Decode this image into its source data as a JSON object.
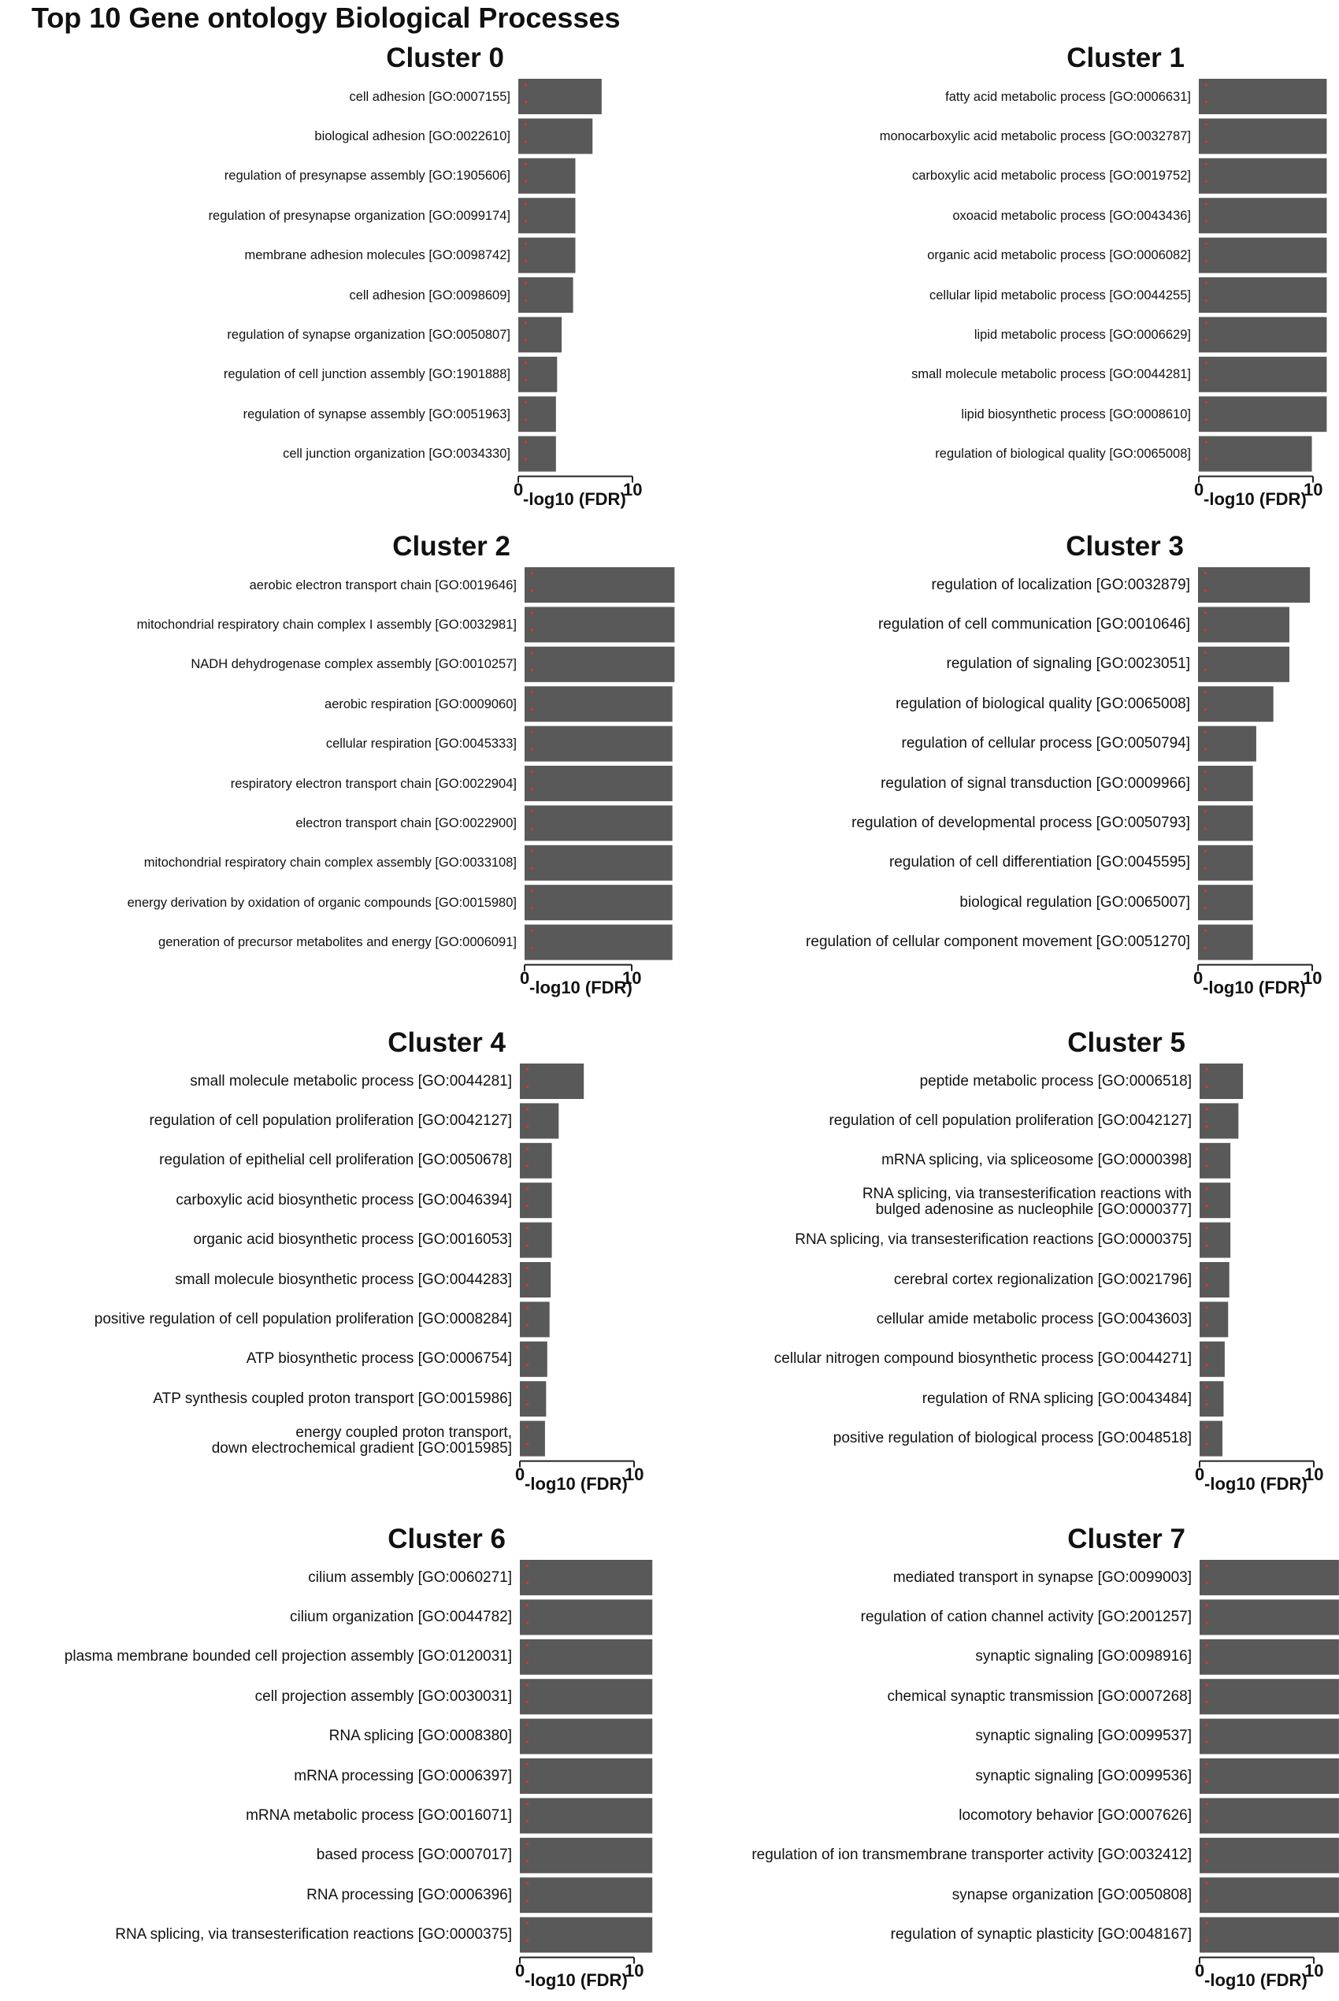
{
  "title": "Top 10 Gene ontology Biological Processes",
  "chart_data": [
    {
      "type": "bar",
      "title": "Cluster 0",
      "xlabel": "-log10 (FDR)",
      "xlim": [
        0,
        10
      ],
      "xticks": [
        "0",
        "10"
      ],
      "categories": [
        "cell adhesion [GO:0007155]",
        "biological adhesion [GO:0022610]",
        "regulation of presynapse assembly [GO:1905606]",
        "regulation of presynapse organization [GO:0099174]",
        "membrane adhesion molecules [GO:0098742]",
        "cell adhesion [GO:0098609]",
        "regulation of synapse organization [GO:0050807]",
        "regulation of cell junction assembly [GO:1901888]",
        "regulation of synapse assembly [GO:0051963]",
        "cell junction organization [GO:0034330]"
      ],
      "values": [
        7.3,
        6.5,
        5.0,
        5.0,
        5.0,
        4.8,
        3.8,
        3.4,
        3.3,
        3.3
      ]
    },
    {
      "type": "bar",
      "title": "Cluster 1",
      "xlabel": "-log10 (FDR)",
      "xlim": [
        0,
        10
      ],
      "xticks": [
        "0",
        "10"
      ],
      "categories": [
        "fatty acid metabolic process [GO:0006631]",
        "monocarboxylic acid metabolic process [GO:0032787]",
        "carboxylic acid metabolic process [GO:0019752]",
        "oxoacid metabolic process [GO:0043436]",
        "organic acid metabolic process [GO:0006082]",
        "cellular lipid metabolic process [GO:0044255]",
        "lipid metabolic process [GO:0006629]",
        "small molecule metabolic process [GO:0044281]",
        "lipid biosynthetic process [GO:0008610]",
        "regulation of biological quality [GO:0065008]"
      ],
      "values": [
        11.2,
        11.2,
        11.2,
        11.2,
        11.2,
        11.2,
        11.2,
        11.2,
        11.2,
        9.9
      ]
    },
    {
      "type": "bar",
      "title": "Cluster 2",
      "xlabel": "-log10 (FDR)",
      "xlim": [
        0,
        10
      ],
      "xticks": [
        "0",
        "10"
      ],
      "categories": [
        "aerobic electron transport chain [GO:0019646]",
        "mitochondrial respiratory chain complex I assembly [GO:0032981]",
        "NADH dehydrogenase complex assembly [GO:0010257]",
        "aerobic respiration [GO:0009060]",
        "cellular respiration [GO:0045333]",
        "respiratory electron transport chain [GO:0022904]",
        "electron transport chain [GO:0022900]",
        "mitochondrial respiratory chain complex assembly [GO:0033108]",
        "energy derivation by oxidation of organic compounds [GO:0015980]",
        "generation of precursor metabolites and energy [GO:0006091]"
      ],
      "values": [
        14.0,
        14.0,
        14.0,
        13.8,
        13.8,
        13.8,
        13.8,
        13.8,
        13.8,
        13.8
      ]
    },
    {
      "type": "bar",
      "title": "Cluster 3",
      "xlabel": "-log10 (FDR)",
      "xlim": [
        0,
        10
      ],
      "xticks": [
        "0",
        "10"
      ],
      "categories": [
        "regulation of localization [GO:0032879]",
        "regulation of cell communication [GO:0010646]",
        "regulation of signaling [GO:0023051]",
        "regulation of biological quality [GO:0065008]",
        "regulation of cellular process [GO:0050794]",
        "regulation of signal transduction [GO:0009966]",
        "regulation of developmental process [GO:0050793]",
        "regulation of cell differentiation [GO:0045595]",
        "biological regulation [GO:0065007]",
        "regulation of cellular component movement [GO:0051270]"
      ],
      "values": [
        9.8,
        8.0,
        8.0,
        6.6,
        5.1,
        4.8,
        4.8,
        4.8,
        4.8,
        4.8
      ]
    },
    {
      "type": "bar",
      "title": "Cluster 4",
      "xlabel": "-log10 (FDR)",
      "xlim": [
        0,
        10
      ],
      "xticks": [
        "0",
        "10"
      ],
      "categories": [
        "small molecule metabolic process [GO:0044281]",
        "regulation of cell population proliferation [GO:0042127]",
        "regulation of epithelial cell proliferation [GO:0050678]",
        "carboxylic acid biosynthetic process [GO:0046394]",
        "organic acid biosynthetic process [GO:0016053]",
        "small molecule biosynthetic process [GO:0044283]",
        "positive regulation of cell population proliferation [GO:0008284]",
        "ATP biosynthetic process [GO:0006754]",
        "ATP synthesis coupled proton transport [GO:0015986]",
        "energy coupled proton transport, down electrochemical gradient [GO:0015985]"
      ],
      "values": [
        5.6,
        3.4,
        2.8,
        2.8,
        2.8,
        2.7,
        2.6,
        2.4,
        2.3,
        2.2
      ]
    },
    {
      "type": "bar",
      "title": "Cluster 5",
      "xlabel": "-log10 (FDR)",
      "xlim": [
        0,
        10
      ],
      "xticks": [
        "0",
        "10"
      ],
      "categories": [
        "peptide metabolic process [GO:0006518]",
        "regulation of cell population proliferation [GO:0042127]",
        "mRNA splicing, via spliceosome [GO:0000398]",
        "RNA splicing, via transesterification reactions with bulged adenosine as nucleophile [GO:0000377]",
        "RNA splicing, via transesterification reactions [GO:0000375]",
        "cerebral cortex regionalization [GO:0021796]",
        "cellular amide metabolic process [GO:0043603]",
        "cellular nitrogen compound biosynthetic process [GO:0044271]",
        "regulation of RNA splicing [GO:0043484]",
        "positive regulation of biological process [GO:0048518]"
      ],
      "values": [
        3.8,
        3.4,
        2.7,
        2.7,
        2.7,
        2.6,
        2.5,
        2.2,
        2.1,
        2.0
      ]
    },
    {
      "type": "bar",
      "title": "Cluster 6",
      "xlabel": "-log10 (FDR)",
      "xlim": [
        0,
        10
      ],
      "xticks": [
        "0",
        "10"
      ],
      "categories": [
        "cilium assembly [GO:0060271]",
        "cilium organization [GO:0044782]",
        "plasma membrane bounded cell projection assembly [GO:0120031]",
        "cell projection assembly [GO:0030031]",
        "RNA splicing [GO:0008380]",
        "mRNA processing [GO:0006397]",
        "mRNA metabolic process [GO:0016071]",
        "based process [GO:0007017]",
        "RNA processing [GO:0006396]",
        "RNA splicing, via transesterification reactions [GO:0000375]"
      ],
      "values": [
        11.6,
        11.6,
        11.6,
        11.6,
        11.6,
        11.6,
        11.6,
        11.6,
        11.6,
        11.6
      ]
    },
    {
      "type": "bar",
      "title": "Cluster 7",
      "xlabel": "-log10 (FDR)",
      "xlim": [
        0,
        10
      ],
      "xticks": [
        "0",
        "10"
      ],
      "categories": [
        "mediated transport in synapse [GO:0099003]",
        "regulation of cation channel activity [GO:2001257]",
        "synaptic signaling [GO:0098916]",
        "chemical synaptic transmission [GO:0007268]",
        "synaptic signaling [GO:0099537]",
        "synaptic signaling [GO:0099536]",
        "locomotory behavior [GO:0007626]",
        "regulation of ion transmembrane transporter activity [GO:0032412]",
        "synapse organization [GO:0050808]",
        "regulation of synaptic plasticity [GO:0048167]"
      ],
      "values": [
        12.2,
        12.2,
        12.2,
        12.2,
        12.2,
        12.2,
        12.2,
        12.2,
        12.2,
        12.2
      ]
    }
  ]
}
